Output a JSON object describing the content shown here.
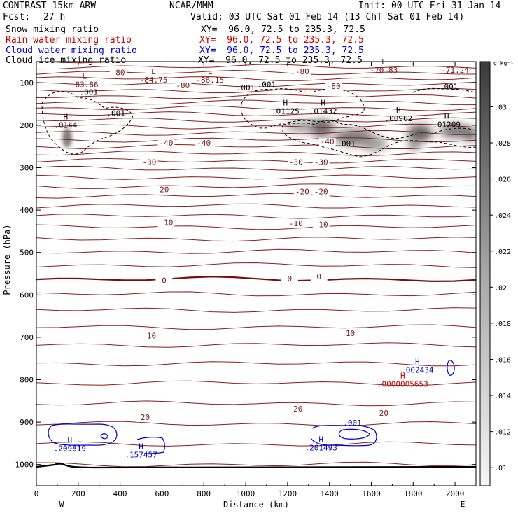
{
  "header": {
    "model": "CONTRAST 15km ARW",
    "center": "NCAR/MMM",
    "init": "Init: 00 UTC Fri 31 Jan 14",
    "fcst_label": "Fcst:",
    "fcst_value": "27 h",
    "valid": "Valid: 03 UTC Sat 01 Feb 14 (13 ChT Sat 01 Feb 14)"
  },
  "legend": [
    {
      "name": "Snow mixing ratio",
      "xy": "XY=  96.0, 72.5 to 235.3, 72.5",
      "color": "#000000"
    },
    {
      "name": "Rain water mixing ratio",
      "xy": "XY=  96.0, 72.5 to 235.3, 72.5",
      "color": "#cc0000"
    },
    {
      "name": "Cloud water mixing ratio",
      "xy": "XY=  96.0, 72.5 to 235.3, 72.5",
      "color": "#0000cc"
    },
    {
      "name": "Cloud ice mixing ratio",
      "xy": "XY=  96.0, 72.5 to 235.3, 72.5",
      "color": "#000000"
    }
  ],
  "chart_data": {
    "type": "cross-section contour",
    "xlabel": "Distance (km)",
    "ylabel": "Pressure (hPa)",
    "x_range": [
      0,
      2100
    ],
    "y_range": [
      1050,
      50
    ],
    "x_ticks": [
      "0",
      "200",
      "400",
      "600",
      "800",
      "1000",
      "1200",
      "1400",
      "1600",
      "1800",
      "2000"
    ],
    "y_ticks": [
      "100",
      "200",
      "300",
      "400",
      "500",
      "600",
      "700",
      "800",
      "900",
      "1000"
    ],
    "x_end_labels": {
      "left": "W",
      "right": "E"
    },
    "colorbar": {
      "unit": "g kg⁻¹",
      "ticks": [
        ".01",
        ".012",
        ".014",
        ".016",
        ".018",
        ".02",
        ".022",
        ".024",
        ".026",
        ".028",
        ".03"
      ],
      "range": [
        0.009,
        0.0325
      ]
    },
    "temperature_labels": [
      {
        "text": "-80",
        "x": 390,
        "p": 82
      },
      {
        "text": "-80",
        "x": 700,
        "p": 113
      },
      {
        "text": "-80",
        "x": 1270,
        "p": 80
      },
      {
        "text": "-80",
        "x": 1420,
        "p": 114
      },
      {
        "text": "-40",
        "x": 620,
        "p": 248
      },
      {
        "text": "-40",
        "x": 800,
        "p": 248
      },
      {
        "text": "-40",
        "x": 1390,
        "p": 245
      },
      {
        "text": "-30",
        "x": 540,
        "p": 293
      },
      {
        "text": "-30",
        "x": 1240,
        "p": 293
      },
      {
        "text": "-30",
        "x": 1360,
        "p": 293
      },
      {
        "text": "-20",
        "x": 600,
        "p": 358
      },
      {
        "text": "-20",
        "x": 1270,
        "p": 363
      },
      {
        "text": "-20",
        "x": 1360,
        "p": 363
      },
      {
        "text": "-10",
        "x": 620,
        "p": 435
      },
      {
        "text": "-10",
        "x": 1240,
        "p": 438
      },
      {
        "text": "-10",
        "x": 1360,
        "p": 440
      },
      {
        "text": "0",
        "x": 610,
        "p": 572
      },
      {
        "text": "0",
        "x": 1210,
        "p": 568
      },
      {
        "text": "0",
        "x": 1350,
        "p": 563
      },
      {
        "text": "10",
        "x": 550,
        "p": 703
      },
      {
        "text": "10",
        "x": 1500,
        "p": 697
      },
      {
        "text": "20",
        "x": 1250,
        "p": 875
      },
      {
        "text": "20",
        "x": 1660,
        "p": 885
      },
      {
        "text": "20",
        "x": 520,
        "p": 895
      }
    ],
    "extrema": [
      {
        "type": "L",
        "value": "-83.86",
        "x": 230,
        "p": 107,
        "color": "#7a1a1a"
      },
      {
        "type": "L",
        "value": "-84.75",
        "x": 560,
        "p": 96,
        "color": "#7a1a1a"
      },
      {
        "type": "L",
        "value": "-86.15",
        "x": 830,
        "p": 96,
        "color": "#7a1a1a"
      },
      {
        "type": "L",
        "value": "-70.83",
        "x": 1660,
        "p": 73,
        "color": "#7a1a1a"
      },
      {
        "type": "L",
        "value": "-71.24",
        "x": 2000,
        "p": 73,
        "color": "#7a1a1a"
      },
      {
        "type": "H",
        "value": ".0144",
        "x": 140,
        "p": 203,
        "color": "#000000"
      },
      {
        "type": "H",
        "value": ".01125",
        "x": 1190,
        "p": 170,
        "color": "#000000"
      },
      {
        "type": "H",
        "value": ".01432",
        "x": 1370,
        "p": 170,
        "color": "#000000"
      },
      {
        "type": "H",
        "value": ".00962",
        "x": 1730,
        "p": 187,
        "color": "#000000"
      },
      {
        "type": "H",
        "value": ".01209",
        "x": 1960,
        "p": 201,
        "color": "#000000"
      },
      {
        "type": "H",
        "value": ".002434",
        "x": 1820,
        "p": 780,
        "color": "#0000cc"
      },
      {
        "type": "H",
        "value": ".0000005653",
        "x": 1750,
        "p": 813,
        "color": "#cc0000"
      },
      {
        "type": "H",
        "value": ".209819",
        "x": 160,
        "p": 965,
        "color": "#0000cc"
      },
      {
        "type": "H",
        "value": ".157457",
        "x": 500,
        "p": 980,
        "color": "#0000cc"
      },
      {
        "type": "H",
        "value": ".201493",
        "x": 1360,
        "p": 963,
        "color": "#0000cc"
      }
    ],
    "contour_labels": [
      {
        "text": ".001",
        "x": 250,
        "p": 128,
        "color": "#000000"
      },
      {
        "text": ".001",
        "x": 380,
        "p": 178,
        "color": "#000000"
      },
      {
        "text": ".001",
        "x": 1000,
        "p": 118,
        "color": "#000000"
      },
      {
        "text": ".001",
        "x": 1100,
        "p": 110,
        "color": "#000000"
      },
      {
        "text": ".001",
        "x": 1970,
        "p": 115,
        "color": "#000000"
      },
      {
        "text": ".001",
        "x": 1480,
        "p": 250,
        "color": "#000000"
      },
      {
        "text": ".001",
        "x": 1510,
        "p": 908,
        "color": "#0000cc"
      }
    ]
  }
}
